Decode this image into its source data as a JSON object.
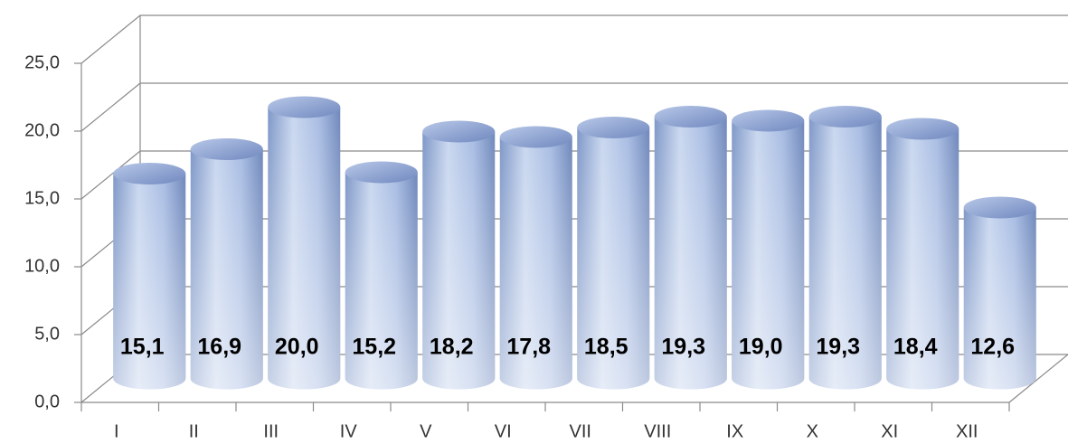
{
  "chart_data": {
    "type": "bar",
    "categories": [
      "I",
      "II",
      "III",
      "IV",
      "V",
      "VI",
      "VII",
      "VIII",
      "IX",
      "X",
      "XI",
      "XII"
    ],
    "values": [
      15.1,
      16.9,
      20.0,
      15.2,
      18.2,
      17.8,
      18.5,
      19.3,
      19.0,
      19.3,
      18.4,
      12.6
    ],
    "value_labels": [
      "15,1",
      "16,9",
      "20,0",
      "15,2",
      "18,2",
      "17,8",
      "18,5",
      "19,3",
      "19,0",
      "19,3",
      "18,4",
      "12,6"
    ],
    "color": "#8fa9d6",
    "ylim": [
      0,
      25
    ],
    "yticks": [
      {
        "value": 0,
        "label": "0,0"
      },
      {
        "value": 5,
        "label": "5,0"
      },
      {
        "value": 10,
        "label": "10,0"
      },
      {
        "value": 15,
        "label": "15,0"
      },
      {
        "value": 20,
        "label": "20,0"
      },
      {
        "value": 25,
        "label": "25,0"
      }
    ],
    "grid": true
  }
}
